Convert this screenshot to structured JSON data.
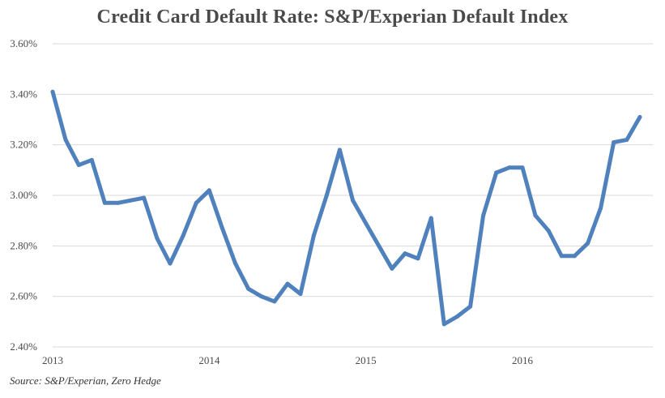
{
  "chart_data": {
    "type": "line",
    "title": "Credit Card Default Rate: S&P/Experian Default Index",
    "source": "Source: S&P/Experian, Zero Hedge",
    "xlabel": "",
    "ylabel": "",
    "ylim": [
      2.4,
      3.6
    ],
    "yticks": [
      2.4,
      2.6,
      2.8,
      3.0,
      3.2,
      3.4,
      3.6
    ],
    "ytick_labels": [
      "2.40%",
      "2.60%",
      "2.80%",
      "3.00%",
      "3.20%",
      "3.40%",
      "3.60%"
    ],
    "xlim": [
      2013.0,
      2016.833
    ],
    "xticks": [
      2013,
      2014,
      2015,
      2016
    ],
    "xtick_labels": [
      "2013",
      "2014",
      "2015",
      "2016"
    ],
    "grid": "horizontal",
    "legend": "none",
    "line_color": "#4f81bd",
    "series": [
      {
        "x": [
          2013.0,
          2013.083,
          2013.167,
          2013.25,
          2013.333,
          2013.417,
          2013.5,
          2013.583,
          2013.667,
          2013.75,
          2013.833,
          2013.917,
          2014.0,
          2014.083,
          2014.167,
          2014.25,
          2014.333,
          2014.417,
          2014.5,
          2014.583,
          2014.667,
          2014.75,
          2014.833,
          2014.917,
          2015.0,
          2015.083,
          2015.167,
          2015.25,
          2015.333,
          2015.417,
          2015.5,
          2015.583,
          2015.667,
          2015.75,
          2015.833,
          2015.917,
          2016.0,
          2016.083,
          2016.167,
          2016.25,
          2016.333,
          2016.417,
          2016.5,
          2016.583,
          2016.667,
          2016.75
        ],
        "values": [
          3.41,
          3.22,
          3.12,
          3.14,
          2.97,
          2.97,
          2.98,
          2.99,
          2.83,
          2.73,
          2.84,
          2.97,
          3.02,
          2.87,
          2.73,
          2.63,
          2.6,
          2.58,
          2.65,
          2.61,
          2.84,
          3.0,
          3.18,
          2.98,
          2.89,
          2.8,
          2.71,
          2.77,
          2.75,
          2.91,
          2.49,
          2.52,
          2.56,
          2.92,
          3.09,
          3.11,
          3.11,
          2.92,
          2.86,
          2.76,
          2.76,
          2.81,
          2.95,
          3.21,
          3.22,
          3.31
        ]
      }
    ]
  }
}
